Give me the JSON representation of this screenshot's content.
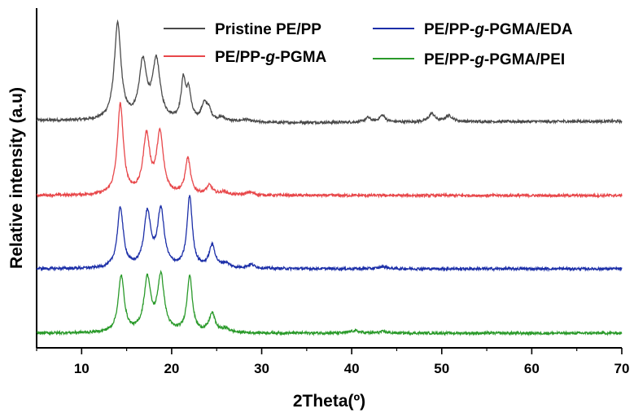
{
  "chart_data": {
    "type": "line",
    "xlabel": "2Theta(º)",
    "ylabel": "Relative intensity (a.u)",
    "xlim": [
      5,
      70
    ],
    "x_ticks": [
      10,
      20,
      30,
      40,
      50,
      60,
      70
    ],
    "x_tick_labels": [
      "10",
      "20",
      "30",
      "40",
      "50",
      "60",
      "70"
    ],
    "y_ticks_shown": false,
    "grid": false,
    "legend_position": "top",
    "series": [
      {
        "name": "Pristine PE/PP",
        "name_parts": [
          "Pristine PE/PP"
        ],
        "color": "#4a4a4a",
        "baseline": 0.82,
        "baseline_slope": [
          [
            5,
            0.82
          ],
          [
            25,
            0.8
          ],
          [
            32,
            0.79
          ],
          [
            40,
            0.795
          ],
          [
            55,
            0.805
          ],
          [
            70,
            0.81
          ]
        ],
        "peaks": [
          {
            "x": 14.0,
            "height": 1.28,
            "width": 0.45
          },
          {
            "x": 16.8,
            "height": 0.75,
            "width": 0.5
          },
          {
            "x": 18.3,
            "height": 0.78,
            "width": 0.5
          },
          {
            "x": 21.3,
            "height": 0.52,
            "width": 0.3
          },
          {
            "x": 21.9,
            "height": 0.36,
            "width": 0.3
          },
          {
            "x": 23.6,
            "height": 0.2,
            "width": 0.35
          },
          {
            "x": 24.1,
            "height": 0.14,
            "width": 0.35
          },
          {
            "x": 25.6,
            "height": 0.05,
            "width": 0.5
          },
          {
            "x": 28.2,
            "height": 0.03,
            "width": 0.6
          },
          {
            "x": 41.8,
            "height": 0.06,
            "width": 0.35
          },
          {
            "x": 43.4,
            "height": 0.09,
            "width": 0.4
          },
          {
            "x": 48.9,
            "height": 0.11,
            "width": 0.4
          },
          {
            "x": 50.8,
            "height": 0.08,
            "width": 0.5
          }
        ]
      },
      {
        "name": "PE/PP-g-PGMA",
        "name_parts": [
          "PE/PP-",
          "g",
          "-PGMA"
        ],
        "color": "#e8474a",
        "baseline": 0.0,
        "peaks": [
          {
            "x": 14.3,
            "height": 1.2,
            "width": 0.4
          },
          {
            "x": 17.2,
            "height": 0.77,
            "width": 0.45
          },
          {
            "x": 18.7,
            "height": 0.8,
            "width": 0.45
          },
          {
            "x": 21.8,
            "height": 0.48,
            "width": 0.35
          },
          {
            "x": 24.2,
            "height": 0.12,
            "width": 0.4
          },
          {
            "x": 25.8,
            "height": 0.04,
            "width": 0.5
          },
          {
            "x": 28.7,
            "height": 0.04,
            "width": 0.5
          }
        ]
      },
      {
        "name": "PE/PP-g-PGMA/EDA",
        "name_parts": [
          "PE/PP-",
          "g",
          "-PGMA/EDA"
        ],
        "color": "#1c2fa8",
        "baseline": 0.0,
        "peaks": [
          {
            "x": 14.3,
            "height": 0.8,
            "width": 0.4
          },
          {
            "x": 17.3,
            "height": 0.72,
            "width": 0.45
          },
          {
            "x": 18.8,
            "height": 0.76,
            "width": 0.45
          },
          {
            "x": 22.0,
            "height": 0.95,
            "width": 0.35
          },
          {
            "x": 24.5,
            "height": 0.3,
            "width": 0.4
          },
          {
            "x": 26.0,
            "height": 0.06,
            "width": 0.5
          },
          {
            "x": 28.8,
            "height": 0.05,
            "width": 0.5
          },
          {
            "x": 43.5,
            "height": 0.03,
            "width": 0.5
          }
        ]
      },
      {
        "name": "PE/PP-g-PGMA/PEI",
        "name_parts": [
          "PE/PP-",
          "g",
          "-PGMA/PEI"
        ],
        "color": "#2a9a2a",
        "baseline": 0.0,
        "peaks": [
          {
            "x": 14.4,
            "height": 0.75,
            "width": 0.4
          },
          {
            "x": 17.3,
            "height": 0.7,
            "width": 0.45
          },
          {
            "x": 18.8,
            "height": 0.74,
            "width": 0.45
          },
          {
            "x": 22.0,
            "height": 0.75,
            "width": 0.35
          },
          {
            "x": 24.5,
            "height": 0.25,
            "width": 0.4
          },
          {
            "x": 26.0,
            "height": 0.05,
            "width": 0.5
          },
          {
            "x": 40.3,
            "height": 0.03,
            "width": 0.6
          },
          {
            "x": 43.5,
            "height": 0.02,
            "width": 0.5
          }
        ]
      }
    ]
  }
}
